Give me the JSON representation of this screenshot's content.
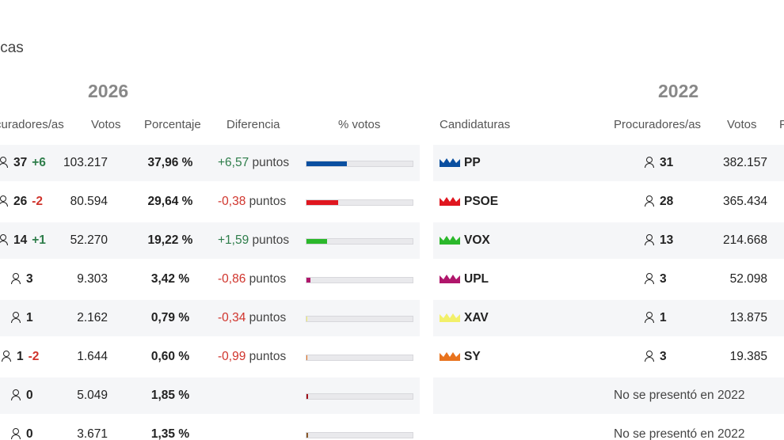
{
  "section_title": "icas",
  "years": {
    "current": "2026",
    "previous": "2022"
  },
  "headers_current": {
    "seats": "curadores/as",
    "votes": "Votos",
    "percentage": "Porcentaje",
    "difference": "Diferencia",
    "vote_share": "% votos"
  },
  "headers_previous": {
    "parties": "Candidaturas",
    "seats": "Procuradores/as",
    "votes": "Votos",
    "percentage_cut": "P"
  },
  "points_label": "puntos",
  "rows": [
    {
      "seats": "37",
      "seat_change": "+6",
      "votes": "103.217",
      "pct": "37,96 %",
      "diff": "+6,57",
      "diff_unit": "puntos",
      "share": 37.96,
      "color": "#0a4fa0",
      "party": "PP",
      "prev_seats": "31",
      "prev_votes": "382.157",
      "absent": ""
    },
    {
      "seats": "26",
      "seat_change": "-2",
      "votes": "80.594",
      "pct": "29,64 %",
      "diff": "-0,38",
      "diff_unit": "puntos",
      "share": 29.64,
      "color": "#e0161f",
      "party": "PSOE",
      "prev_seats": "28",
      "prev_votes": "365.434",
      "absent": ""
    },
    {
      "seats": "14",
      "seat_change": "+1",
      "votes": "52.270",
      "pct": "19,22 %",
      "diff": "+1,59",
      "diff_unit": "puntos",
      "share": 19.22,
      "color": "#2bb82b",
      "party": "VOX",
      "prev_seats": "13",
      "prev_votes": "214.668",
      "absent": ""
    },
    {
      "seats": "3",
      "seat_change": "",
      "votes": "9.303",
      "pct": "3,42 %",
      "diff": "-0,86",
      "diff_unit": "puntos",
      "share": 3.42,
      "color": "#b0166b",
      "party": "UPL",
      "prev_seats": "3",
      "prev_votes": "52.098",
      "absent": ""
    },
    {
      "seats": "1",
      "seat_change": "",
      "votes": "2.162",
      "pct": "0,79 %",
      "diff": "-0,34",
      "diff_unit": "puntos",
      "share": 0.79,
      "color": "#f2f06a",
      "party": "XAV",
      "prev_seats": "1",
      "prev_votes": "13.875",
      "absent": ""
    },
    {
      "seats": "1",
      "seat_change": "-2",
      "votes": "1.644",
      "pct": "0,60 %",
      "diff": "-0,99",
      "diff_unit": "puntos",
      "share": 0.6,
      "color": "#e8731e",
      "party": "SY",
      "prev_seats": "3",
      "prev_votes": "19.385",
      "absent": ""
    },
    {
      "seats": "0",
      "seat_change": "",
      "votes": "5.049",
      "pct": "1,85 %",
      "diff": "",
      "diff_unit": "",
      "share": 1.85,
      "color": "#a1121c",
      "party": "",
      "prev_seats": "",
      "prev_votes": "",
      "absent": "No se presentó en 2022"
    },
    {
      "seats": "0",
      "seat_change": "",
      "votes": "3.671",
      "pct": "1,35 %",
      "diff": "",
      "diff_unit": "",
      "share": 1.35,
      "color": "#8a5a2b",
      "party": "",
      "prev_seats": "",
      "prev_votes": "",
      "absent": "No se presentó en 2022"
    }
  ]
}
